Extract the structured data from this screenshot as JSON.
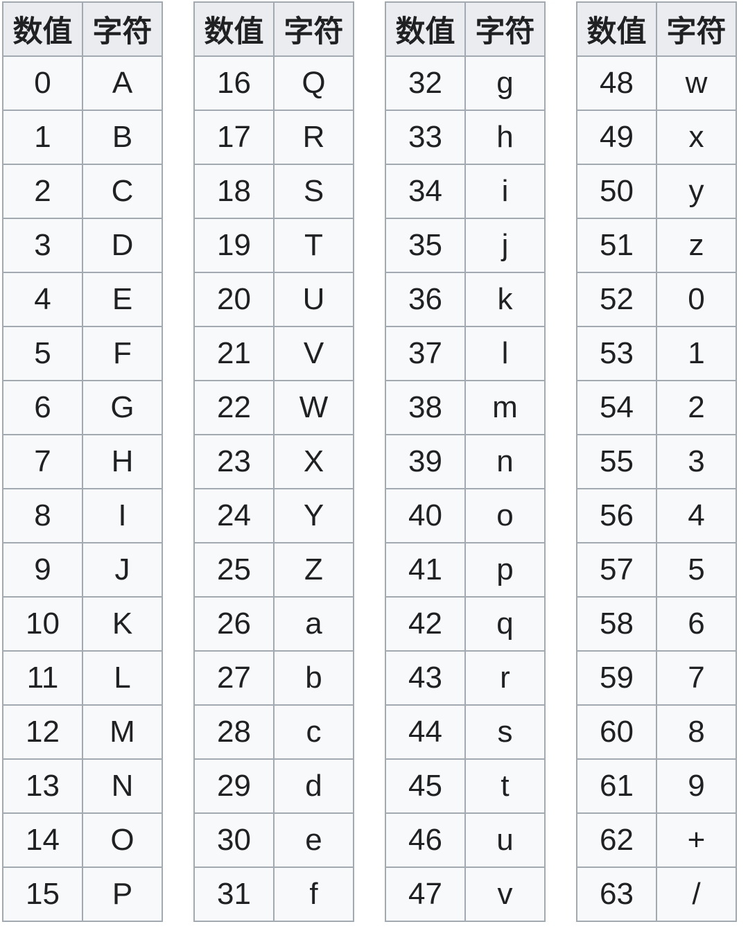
{
  "colors": {
    "page_bg": "#ffffff",
    "header_bg": "#eaecf0",
    "cell_bg": "#f8f9fa",
    "border": "#a2a9b1",
    "text": "#202122"
  },
  "column_headers": [
    "数值",
    "字符"
  ],
  "tables": [
    {
      "headers": [
        "数值",
        "字符"
      ],
      "rows": [
        [
          "0",
          "A"
        ],
        [
          "1",
          "B"
        ],
        [
          "2",
          "C"
        ],
        [
          "3",
          "D"
        ],
        [
          "4",
          "E"
        ],
        [
          "5",
          "F"
        ],
        [
          "6",
          "G"
        ],
        [
          "7",
          "H"
        ],
        [
          "8",
          "I"
        ],
        [
          "9",
          "J"
        ],
        [
          "10",
          "K"
        ],
        [
          "11",
          "L"
        ],
        [
          "12",
          "M"
        ],
        [
          "13",
          "N"
        ],
        [
          "14",
          "O"
        ],
        [
          "15",
          "P"
        ]
      ]
    },
    {
      "headers": [
        "数值",
        "字符"
      ],
      "rows": [
        [
          "16",
          "Q"
        ],
        [
          "17",
          "R"
        ],
        [
          "18",
          "S"
        ],
        [
          "19",
          "T"
        ],
        [
          "20",
          "U"
        ],
        [
          "21",
          "V"
        ],
        [
          "22",
          "W"
        ],
        [
          "23",
          "X"
        ],
        [
          "24",
          "Y"
        ],
        [
          "25",
          "Z"
        ],
        [
          "26",
          "a"
        ],
        [
          "27",
          "b"
        ],
        [
          "28",
          "c"
        ],
        [
          "29",
          "d"
        ],
        [
          "30",
          "e"
        ],
        [
          "31",
          "f"
        ]
      ]
    },
    {
      "headers": [
        "数值",
        "字符"
      ],
      "rows": [
        [
          "32",
          "g"
        ],
        [
          "33",
          "h"
        ],
        [
          "34",
          "i"
        ],
        [
          "35",
          "j"
        ],
        [
          "36",
          "k"
        ],
        [
          "37",
          "l"
        ],
        [
          "38",
          "m"
        ],
        [
          "39",
          "n"
        ],
        [
          "40",
          "o"
        ],
        [
          "41",
          "p"
        ],
        [
          "42",
          "q"
        ],
        [
          "43",
          "r"
        ],
        [
          "44",
          "s"
        ],
        [
          "45",
          "t"
        ],
        [
          "46",
          "u"
        ],
        [
          "47",
          "v"
        ]
      ]
    },
    {
      "headers": [
        "数值",
        "字符"
      ],
      "rows": [
        [
          "48",
          "w"
        ],
        [
          "49",
          "x"
        ],
        [
          "50",
          "y"
        ],
        [
          "51",
          "z"
        ],
        [
          "52",
          "0"
        ],
        [
          "53",
          "1"
        ],
        [
          "54",
          "2"
        ],
        [
          "55",
          "3"
        ],
        [
          "56",
          "4"
        ],
        [
          "57",
          "5"
        ],
        [
          "58",
          "6"
        ],
        [
          "59",
          "7"
        ],
        [
          "60",
          "8"
        ],
        [
          "61",
          "9"
        ],
        [
          "62",
          "+"
        ],
        [
          "63",
          "/"
        ]
      ]
    }
  ]
}
